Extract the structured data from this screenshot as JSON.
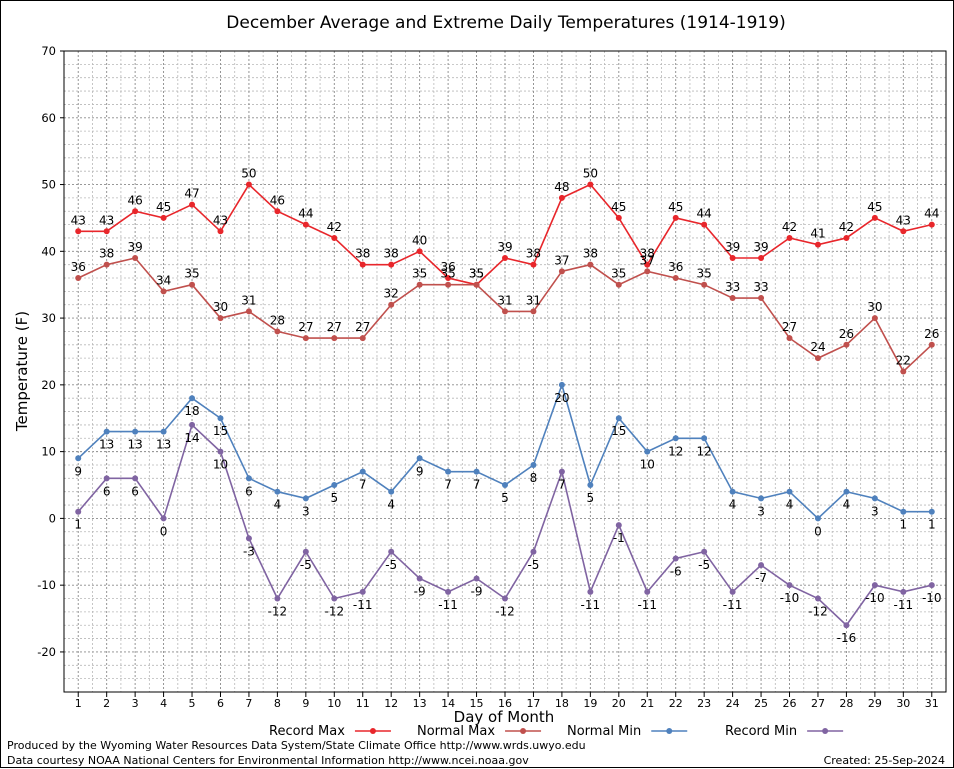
{
  "chart_data": {
    "type": "line",
    "title": "December Average and Extreme Daily Temperatures (1914-1919)",
    "xlabel": "Day of Month",
    "ylabel": "Temperature (F)",
    "x": [
      1,
      2,
      3,
      4,
      5,
      6,
      7,
      8,
      9,
      10,
      11,
      12,
      13,
      14,
      15,
      16,
      17,
      18,
      19,
      20,
      21,
      22,
      23,
      24,
      25,
      26,
      27,
      28,
      29,
      30,
      31
    ],
    "xlim": [
      0.5,
      31.5
    ],
    "ylim": [
      -26,
      70
    ],
    "yticks": [
      -20,
      -10,
      0,
      10,
      20,
      30,
      40,
      50,
      60,
      70
    ],
    "grid": true,
    "legend_position": "bottom",
    "series": [
      {
        "name": "Record Max",
        "color": "#e8262b",
        "label_pos": "above",
        "values": [
          43,
          43,
          46,
          45,
          47,
          43,
          50,
          46,
          44,
          42,
          38,
          38,
          40,
          36,
          35,
          39,
          38,
          48,
          50,
          45,
          38,
          45,
          44,
          39,
          39,
          42,
          41,
          42,
          45,
          43,
          44
        ]
      },
      {
        "name": "Normal Max",
        "color": "#c0504d",
        "label_pos": "above",
        "values": [
          36,
          38,
          39,
          34,
          35,
          30,
          31,
          28,
          27,
          27,
          27,
          32,
          35,
          35,
          35,
          31,
          31,
          37,
          38,
          35,
          37,
          36,
          35,
          33,
          33,
          27,
          24,
          26,
          30,
          22,
          26
        ]
      },
      {
        "name": "Normal Min",
        "color": "#4f81bd",
        "label_pos": "below",
        "values": [
          9,
          13,
          13,
          13,
          18,
          15,
          6,
          4,
          3,
          5,
          7,
          4,
          9,
          7,
          7,
          5,
          8,
          20,
          5,
          15,
          10,
          12,
          12,
          4,
          3,
          4,
          0,
          4,
          3,
          1,
          1
        ]
      },
      {
        "name": "Record Min",
        "color": "#8064a2",
        "label_pos": "below",
        "values": [
          1,
          6,
          6,
          0,
          14,
          10,
          -3,
          -12,
          -5,
          -12,
          -11,
          -5,
          -9,
          -11,
          -9,
          -12,
          -5,
          7,
          -11,
          -1,
          -11,
          -6,
          -5,
          -11,
          -7,
          -10,
          -12,
          -16,
          -10,
          -11,
          -10
        ]
      }
    ]
  },
  "footer": {
    "line1": "Produced by the Wyoming Water Resources Data System/State Climate Office http://www.wrds.uwyo.edu",
    "line2": "Data courtesy NOAA National Centers for Environmental Information http://www.ncei.noaa.gov",
    "created": "Created:  25-Sep-2024"
  }
}
